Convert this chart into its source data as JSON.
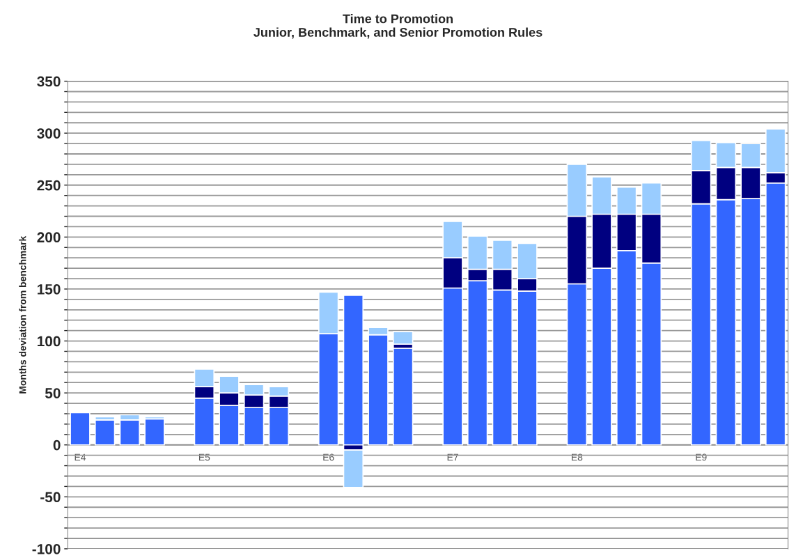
{
  "chart_data": {
    "type": "bar",
    "stacked": true,
    "title": "Time to Promotion\nJunior, Benchmark, and Senior Promotion Rules",
    "ylabel": "Months deviation from benchmark",
    "categories": [
      "E4",
      null,
      null,
      null,
      null,
      "E5",
      null,
      null,
      null,
      null,
      "E6",
      null,
      null,
      null,
      null,
      "E7",
      null,
      null,
      null,
      null,
      "E8",
      null,
      null,
      null,
      null,
      "E9",
      null,
      null,
      null
    ],
    "series": [
      {
        "color": "#3366ff",
        "values": [
          31,
          24,
          24,
          25,
          null,
          45,
          38,
          36,
          36,
          null,
          107,
          144,
          106,
          93,
          null,
          151,
          158,
          149,
          148,
          null,
          155,
          170,
          187,
          175,
          null,
          232,
          236,
          237,
          252
        ]
      },
      {
        "color": "#000080",
        "values": [
          null,
          null,
          null,
          null,
          null,
          11,
          12,
          12,
          11,
          null,
          null,
          -5,
          null,
          4,
          null,
          29,
          11,
          20,
          12,
          null,
          65,
          52,
          35,
          47,
          null,
          32,
          31,
          30,
          10
        ]
      },
      {
        "color": "#99ccff",
        "values": [
          null,
          3,
          5,
          2,
          null,
          17,
          16,
          10,
          9,
          null,
          40,
          -36,
          7,
          12,
          null,
          35,
          32,
          28,
          34,
          null,
          50,
          36,
          26,
          30,
          null,
          29,
          24,
          23,
          42
        ]
      }
    ],
    "ylim": [
      -100,
      350
    ],
    "yticks": [
      -100,
      {
        "value": -90,
        "label": null
      },
      {
        "value": -80,
        "label": null
      },
      {
        "value": -70,
        "label": null
      },
      {
        "value": -60,
        "label": null
      },
      -50,
      {
        "value": -40,
        "label": null
      },
      {
        "value": -30,
        "label": null
      },
      {
        "value": -20,
        "label": null
      },
      {
        "value": -10,
        "label": null
      },
      0,
      {
        "value": 10,
        "label": null
      },
      {
        "value": 20,
        "label": null
      },
      {
        "value": 30,
        "label": null
      },
      {
        "value": 40,
        "label": null
      },
      50,
      {
        "value": 60,
        "label": null
      },
      {
        "value": 70,
        "label": null
      },
      {
        "value": 80,
        "label": null
      },
      {
        "value": 90,
        "label": null
      },
      100,
      {
        "value": 110,
        "label": null
      },
      {
        "value": 120,
        "label": null
      },
      {
        "value": 130,
        "label": null
      },
      {
        "value": 140,
        "label": null
      },
      150,
      {
        "value": 160,
        "label": null
      },
      {
        "value": 170,
        "label": null
      },
      {
        "value": 180,
        "label": null
      },
      {
        "value": 190,
        "label": null
      },
      200,
      {
        "value": 210,
        "label": null
      },
      {
        "value": 220,
        "label": null
      },
      {
        "value": 230,
        "label": null
      },
      {
        "value": 240,
        "label": null
      },
      250,
      {
        "value": 260,
        "label": null
      },
      {
        "value": 270,
        "label": null
      },
      {
        "value": 280,
        "label": null
      },
      {
        "value": 290,
        "label": null
      },
      300,
      {
        "value": 310,
        "label": null
      },
      {
        "value": 320,
        "label": null
      },
      {
        "value": 330,
        "label": null
      },
      {
        "value": 340,
        "label": null
      },
      350
    ],
    "grid": "y"
  }
}
